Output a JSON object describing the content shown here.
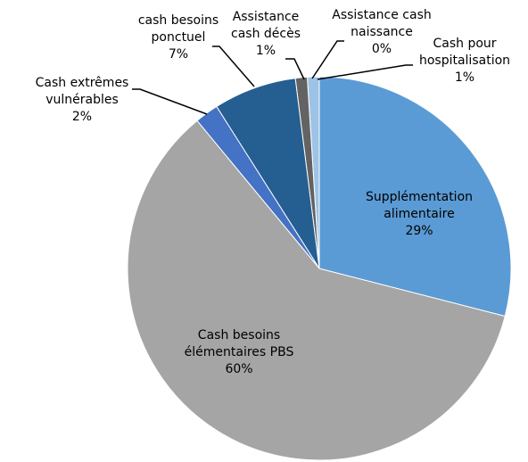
{
  "chart_data": {
    "type": "pie",
    "categories": [
      "Supplémentation alimentaire",
      "Cash besoins élémentaires PBS",
      "Cash extrêmes vulnérables",
      "cash besoins ponctuel",
      "Assistance cash décès",
      "Assistance cash naissance",
      "Cash pour hospitalisation"
    ],
    "values": [
      29,
      60,
      2,
      7,
      1,
      0,
      1
    ],
    "value_labels": [
      "29%",
      "60%",
      "2%",
      "7%",
      "1%",
      "0%",
      "1%"
    ],
    "colors": [
      "#5b9bd5",
      "#a5a5a5",
      "#4472c4",
      "#255e91",
      "#636363",
      "#264478",
      "#9dc3e6"
    ]
  }
}
